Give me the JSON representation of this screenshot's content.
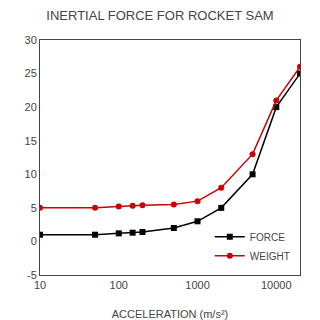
{
  "chart_data": {
    "type": "line",
    "title": "INERTIAL FORCE FOR ROCKET SAM",
    "xlabel": "ACCELERATION (m/s²)",
    "x": [
      10,
      50,
      100,
      150,
      200,
      500,
      1000,
      2000,
      5000,
      10000,
      20000
    ],
    "series": [
      {
        "name": "FORCE",
        "color": "#000000",
        "marker": "square",
        "values": [
          1,
          1,
          1.2,
          1.3,
          1.4,
          2,
          3,
          5,
          10,
          20,
          25
        ]
      },
      {
        "name": "WEIGHT",
        "color": "#cc0000",
        "marker": "circle",
        "values": [
          5,
          5,
          5.2,
          5.3,
          5.4,
          5.5,
          6,
          8,
          13,
          21,
          26
        ]
      }
    ],
    "log": "x",
    "xlim": [
      10,
      20000
    ],
    "xticks": [
      10,
      100,
      1000,
      10000
    ],
    "ylim": [
      -5,
      30
    ],
    "yticks": [
      -5,
      0,
      5,
      10,
      15,
      20,
      25,
      30
    ],
    "grid": false,
    "legend": "lower right"
  }
}
